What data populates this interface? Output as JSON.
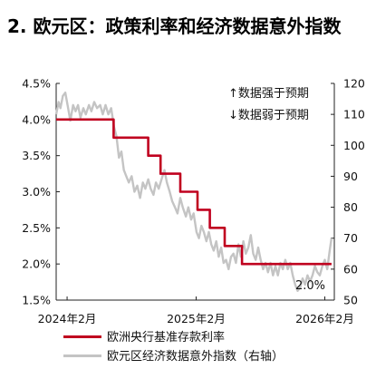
{
  "title": "2. 欧元区：政策利率和经济数据意外指数",
  "chart_data": {
    "type": "line",
    "title": "2. 欧元区：政策利率和经济数据意外指数",
    "x_range": [
      "2024-01-01",
      "2026-02-28"
    ],
    "x_ticks": [
      {
        "date": "2024-02-01",
        "label": "2024年2月"
      },
      {
        "date": "2025-02-01",
        "label": "2025年2月"
      },
      {
        "date": "2026-02-01",
        "label": "2026年2月"
      }
    ],
    "y_left": {
      "ylim": [
        1.5,
        4.5
      ],
      "ticks": [
        "1.5%",
        "2.0%",
        "2.5%",
        "3.0%",
        "3.5%",
        "4.0%",
        "4.5%"
      ],
      "tick_values": [
        1.5,
        2.0,
        2.5,
        3.0,
        3.5,
        4.0,
        4.5
      ]
    },
    "y_right": {
      "ylim": [
        50,
        120
      ],
      "ticks": [
        "50",
        "60",
        "70",
        "80",
        "90",
        "100",
        "110",
        "120"
      ],
      "tick_values": [
        50,
        60,
        70,
        80,
        90,
        100,
        110,
        120
      ]
    },
    "annotations": [
      {
        "text": "↑数据强于预期"
      },
      {
        "text": "↓数据弱于预期"
      },
      {
        "text": "2.0%"
      }
    ],
    "legend_position": "bottom",
    "grid": false,
    "series": [
      {
        "name": "欧洲央行基准存款利率",
        "axis": "left",
        "color": "#c0001f",
        "style": "step",
        "points": [
          [
            "2024-01-01",
            4.0
          ],
          [
            "2024-06-12",
            3.75
          ],
          [
            "2024-09-18",
            3.5
          ],
          [
            "2024-10-23",
            3.25
          ],
          [
            "2024-12-18",
            3.0
          ],
          [
            "2025-02-05",
            2.75
          ],
          [
            "2025-03-12",
            2.5
          ],
          [
            "2025-04-23",
            2.25
          ],
          [
            "2025-06-11",
            2.0
          ],
          [
            "2026-02-20",
            2.0
          ]
        ]
      },
      {
        "name": "欧元区经济数据意外指数（右轴）",
        "axis": "right",
        "color": "#c4c4c4",
        "style": "line",
        "points": [
          [
            "2024-01-01",
            110
          ],
          [
            "2024-01-08",
            114
          ],
          [
            "2024-01-13",
            112
          ],
          [
            "2024-01-20",
            116
          ],
          [
            "2024-01-27",
            117
          ],
          [
            "2024-02-04",
            112
          ],
          [
            "2024-02-10",
            108
          ],
          [
            "2024-02-18",
            113
          ],
          [
            "2024-02-25",
            111
          ],
          [
            "2024-03-03",
            113
          ],
          [
            "2024-03-10",
            109
          ],
          [
            "2024-03-18",
            112
          ],
          [
            "2024-03-25",
            110
          ],
          [
            "2024-04-03",
            113
          ],
          [
            "2024-04-10",
            111
          ],
          [
            "2024-04-18",
            114
          ],
          [
            "2024-04-26",
            112
          ],
          [
            "2024-05-05",
            113
          ],
          [
            "2024-05-12",
            110
          ],
          [
            "2024-05-20",
            113
          ],
          [
            "2024-05-28",
            110
          ],
          [
            "2024-06-05",
            112
          ],
          [
            "2024-06-13",
            106
          ],
          [
            "2024-06-20",
            103
          ],
          [
            "2024-06-27",
            96
          ],
          [
            "2024-07-04",
            98
          ],
          [
            "2024-07-11",
            92
          ],
          [
            "2024-07-18",
            90
          ],
          [
            "2024-07-25",
            88
          ],
          [
            "2024-08-02",
            90
          ],
          [
            "2024-08-10",
            85
          ],
          [
            "2024-08-18",
            87
          ],
          [
            "2024-08-26",
            83
          ],
          [
            "2024-09-03",
            88
          ],
          [
            "2024-09-10",
            86
          ],
          [
            "2024-09-18",
            89
          ],
          [
            "2024-09-25",
            86
          ],
          [
            "2024-10-03",
            84
          ],
          [
            "2024-10-10",
            88
          ],
          [
            "2024-10-18",
            86
          ],
          [
            "2024-10-26",
            89
          ],
          [
            "2024-11-03",
            92
          ],
          [
            "2024-11-10",
            88
          ],
          [
            "2024-11-18",
            85
          ],
          [
            "2024-11-25",
            82
          ],
          [
            "2024-12-03",
            80
          ],
          [
            "2024-12-10",
            78
          ],
          [
            "2024-12-18",
            83
          ],
          [
            "2024-12-25",
            80
          ],
          [
            "2025-01-03",
            77
          ],
          [
            "2025-01-10",
            80
          ],
          [
            "2025-01-18",
            76
          ],
          [
            "2025-01-25",
            78
          ],
          [
            "2025-02-02",
            72
          ],
          [
            "2025-02-09",
            70
          ],
          [
            "2025-02-16",
            74
          ],
          [
            "2025-02-23",
            72
          ],
          [
            "2025-03-02",
            69
          ],
          [
            "2025-03-09",
            72
          ],
          [
            "2025-03-16",
            68
          ],
          [
            "2025-03-23",
            66
          ],
          [
            "2025-03-30",
            69
          ],
          [
            "2025-04-06",
            64
          ],
          [
            "2025-04-13",
            67
          ],
          [
            "2025-04-20",
            62
          ],
          [
            "2025-04-27",
            63
          ],
          [
            "2025-05-04",
            60
          ],
          [
            "2025-05-11",
            64
          ],
          [
            "2025-05-18",
            65
          ],
          [
            "2025-05-25",
            62
          ],
          [
            "2025-06-01",
            68
          ],
          [
            "2025-06-08",
            64
          ],
          [
            "2025-06-15",
            69
          ],
          [
            "2025-06-22",
            65
          ],
          [
            "2025-06-29",
            67
          ],
          [
            "2025-07-06",
            71
          ],
          [
            "2025-07-13",
            65
          ],
          [
            "2025-07-20",
            63
          ],
          [
            "2025-07-27",
            67
          ],
          [
            "2025-08-03",
            63
          ],
          [
            "2025-08-10",
            60
          ],
          [
            "2025-08-17",
            62
          ],
          [
            "2025-08-24",
            59
          ],
          [
            "2025-08-31",
            62
          ],
          [
            "2025-09-07",
            58
          ],
          [
            "2025-09-14",
            61
          ],
          [
            "2025-09-21",
            58
          ],
          [
            "2025-09-28",
            62
          ],
          [
            "2025-10-05",
            60
          ],
          [
            "2025-10-12",
            63
          ],
          [
            "2025-10-19",
            60
          ],
          [
            "2025-10-26",
            62
          ],
          [
            "2025-11-02",
            58
          ],
          [
            "2025-11-09",
            55
          ],
          [
            "2025-11-16",
            53
          ],
          [
            "2025-11-23",
            54
          ],
          [
            "2025-11-30",
            57
          ],
          [
            "2025-12-07",
            55
          ],
          [
            "2025-12-14",
            58
          ],
          [
            "2025-12-21",
            56
          ],
          [
            "2025-12-28",
            58
          ],
          [
            "2026-01-04",
            61
          ],
          [
            "2026-01-11",
            59
          ],
          [
            "2026-01-18",
            58
          ],
          [
            "2026-01-25",
            61
          ],
          [
            "2026-02-01",
            63
          ],
          [
            "2026-02-08",
            60
          ],
          [
            "2026-02-15",
            66
          ],
          [
            "2026-02-20",
            70
          ]
        ]
      }
    ]
  }
}
